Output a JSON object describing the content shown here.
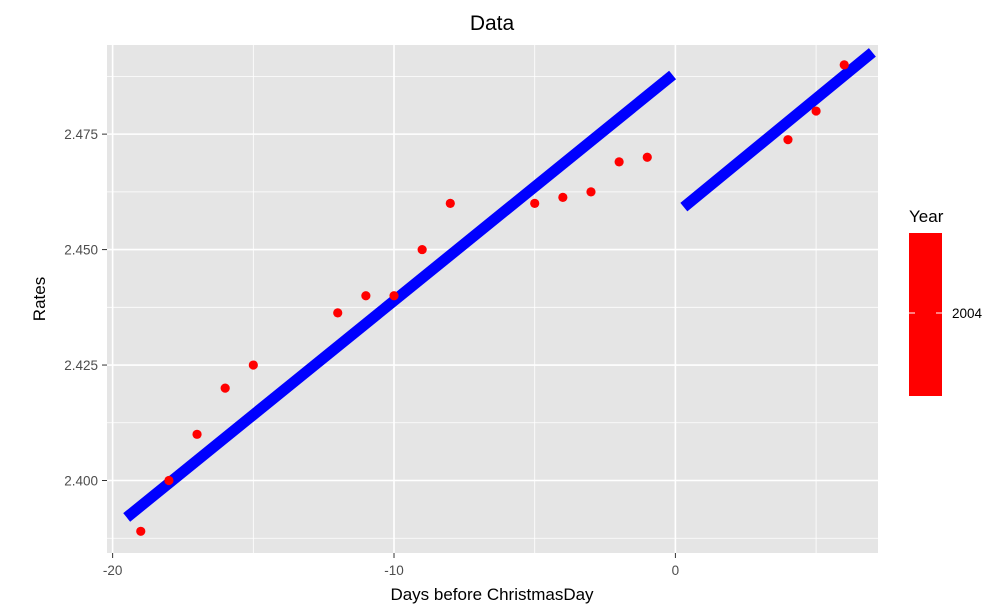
{
  "chart_data": {
    "type": "scatter",
    "title": "Data",
    "xlabel": "Days before ChristmasDay",
    "ylabel": "Rates",
    "xlim": [
      -20.2,
      7.2
    ],
    "ylim": [
      2.3843,
      2.4943
    ],
    "grid": true,
    "x_ticks": [
      -20,
      -10,
      0
    ],
    "x_tick_labels": [
      "-20",
      "-10",
      "0"
    ],
    "y_ticks": [
      2.4,
      2.425,
      2.45,
      2.475
    ],
    "y_tick_labels": [
      "2.400",
      "2.425",
      "2.450",
      "2.475"
    ],
    "points": {
      "x": [
        -19,
        -18,
        -17,
        -16,
        -15,
        -12,
        -11,
        -10,
        -9,
        -8,
        -5,
        -4,
        -3,
        -2,
        -1,
        4,
        5,
        6
      ],
      "y": [
        2.389,
        2.4,
        2.41,
        2.42,
        2.425,
        2.4363,
        2.44,
        2.44,
        2.45,
        2.46,
        2.46,
        2.4613,
        2.4625,
        2.469,
        2.47,
        2.4738,
        2.48,
        2.49
      ],
      "color": "#ff0000"
    },
    "fit_lines": [
      {
        "x": [
          -19.5,
          -0.1
        ],
        "y": [
          2.392,
          2.4878
        ],
        "color": "#0000ff"
      },
      {
        "x": [
          0.3,
          7.0
        ],
        "y": [
          2.4592,
          2.4927
        ],
        "color": "#0000ff"
      }
    ],
    "legend": {
      "title": "Year",
      "labels": [
        "2004"
      ],
      "color": "#ff0000",
      "position": "right"
    }
  },
  "colors": {
    "panel_background": "#e5e5e5",
    "grid": "#ffffff",
    "point": "#ff0000",
    "fit_line": "#0000ff"
  }
}
